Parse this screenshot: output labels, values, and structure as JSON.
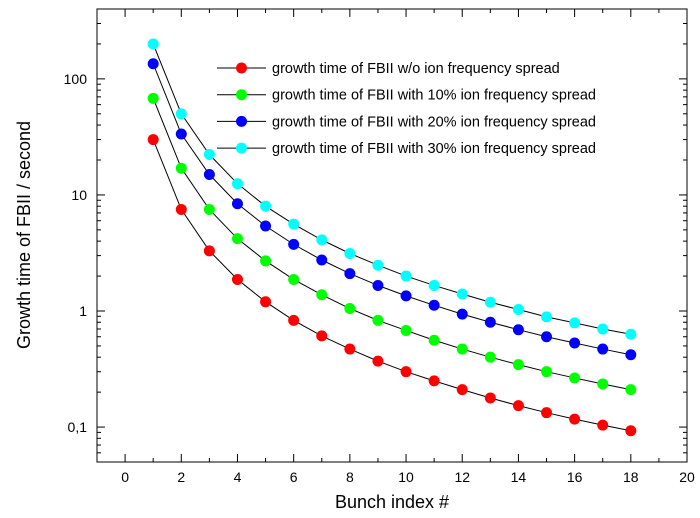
{
  "chart_data": {
    "type": "scatter",
    "xlabel": "Bunch index #",
    "ylabel": "Growth time of FBII / second",
    "xlim": [
      -1,
      20
    ],
    "ylim": [
      0.05,
      400
    ],
    "y_scale": "log",
    "x_ticks": [
      "0",
      "2",
      "4",
      "6",
      "8",
      "10",
      "12",
      "14",
      "16",
      "18",
      "20"
    ],
    "y_ticks": [
      "0,1",
      "1",
      "10",
      "100"
    ],
    "x_tick_values": [
      0,
      2,
      4,
      6,
      8,
      10,
      12,
      14,
      16,
      18,
      20
    ],
    "y_tick_values": [
      0.1,
      1,
      10,
      100
    ],
    "grid": false,
    "legend_position": "top-right",
    "x": [
      1,
      2,
      3,
      4,
      5,
      6,
      7,
      8,
      9,
      10,
      11,
      12,
      13,
      14,
      15,
      16,
      17,
      18
    ],
    "series": [
      {
        "name": "growth time of FBII w/o ion frequency spread",
        "color": "#ff0000",
        "values": [
          30,
          7.5,
          3.3,
          1.87,
          1.2,
          0.83,
          0.61,
          0.47,
          0.37,
          0.3,
          0.25,
          0.21,
          0.178,
          0.153,
          0.133,
          0.117,
          0.104,
          0.093
        ]
      },
      {
        "name": "growth time of FBII with 10% ion frequency spread",
        "color": "#00ff00",
        "values": [
          68,
          17,
          7.5,
          4.2,
          2.7,
          1.87,
          1.38,
          1.05,
          0.83,
          0.68,
          0.56,
          0.47,
          0.4,
          0.345,
          0.3,
          0.265,
          0.235,
          0.21
        ]
      },
      {
        "name": "growth time of FBII with 20% ion frequency spread",
        "color": "#0000ff",
        "values": [
          135,
          33.5,
          15,
          8.4,
          5.4,
          3.75,
          2.75,
          2.1,
          1.66,
          1.35,
          1.12,
          0.94,
          0.8,
          0.69,
          0.6,
          0.53,
          0.47,
          0.42
        ]
      },
      {
        "name": "growth time of FBII with 30% ion frequency spread",
        "color": "#00ffff",
        "values": [
          200,
          50,
          22.3,
          12.5,
          8.0,
          5.6,
          4.1,
          3.13,
          2.48,
          2.0,
          1.66,
          1.4,
          1.19,
          1.03,
          0.89,
          0.79,
          0.7,
          0.63
        ]
      }
    ]
  }
}
